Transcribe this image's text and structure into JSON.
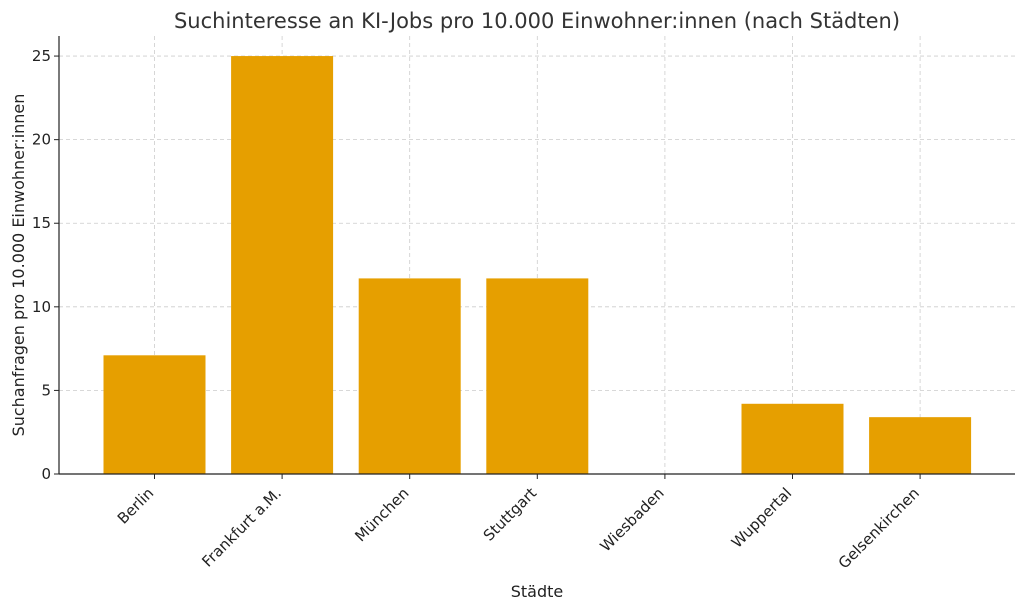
{
  "chart_data": {
    "type": "bar",
    "title": "Suchinteresse an KI-Jobs pro 10.000 Einwohner:innen (nach Städten)",
    "xlabel": "Städte",
    "ylabel": "Suchanfragen pro 10.000 Einwohner:innen",
    "categories": [
      "Berlin",
      "Frankfurt a.M.",
      "München",
      "Stuttgart",
      "Wiesbaden",
      "Wuppertal",
      "Gelsenkirchen"
    ],
    "values": [
      7.1,
      25.0,
      11.7,
      11.7,
      0,
      4.2,
      3.4
    ],
    "ylim": [
      0,
      26.2
    ],
    "yticks": [
      0,
      5,
      10,
      15,
      20,
      25
    ],
    "grid": true,
    "bar_color": "#E69F00"
  }
}
